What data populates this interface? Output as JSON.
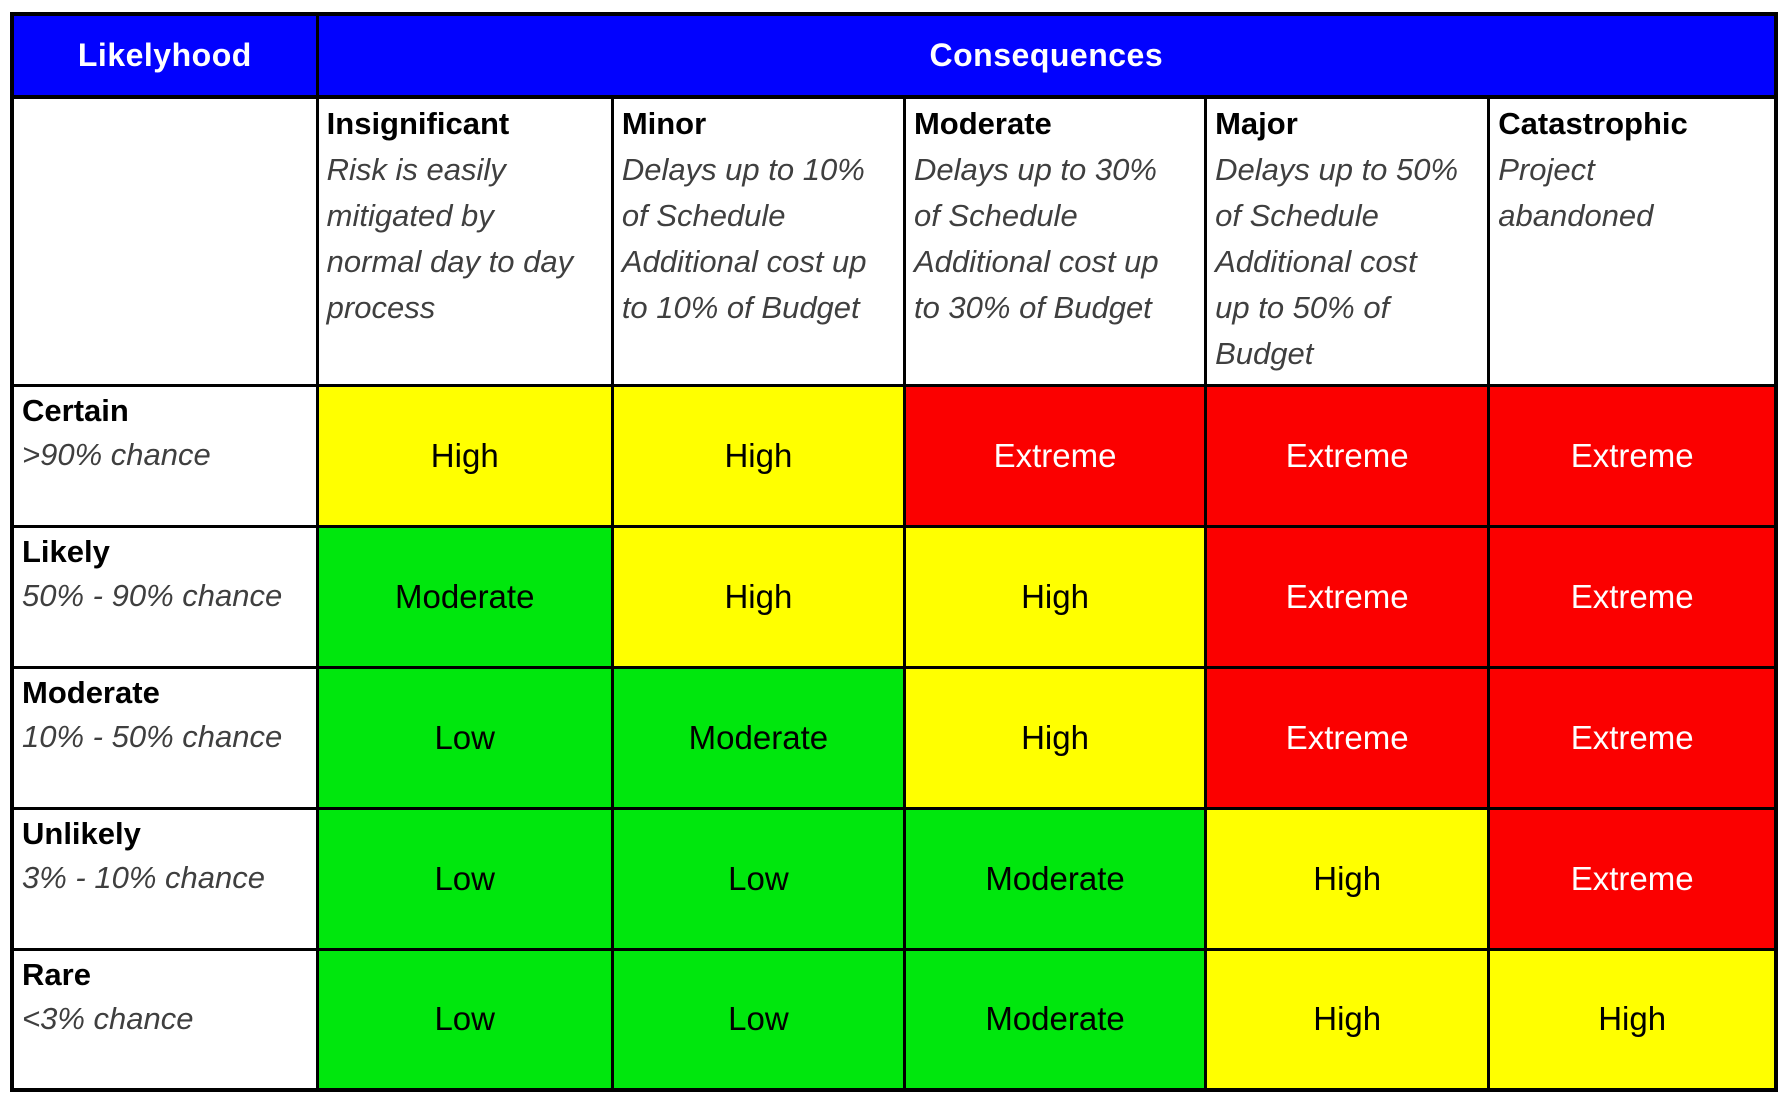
{
  "page": {
    "background": "#FFFFFF"
  },
  "table": {
    "likelihood_header": "Likelyhood",
    "consequences_header": "Consequences",
    "columns": [
      {
        "name": "Insignificant",
        "description": "Risk is easily\nmitigated by\nnormal day to day\nprocess"
      },
      {
        "name": "Minor",
        "description": "Delays up to 10%\nof Schedule\nAdditional cost up\nto 10% of Budget"
      },
      {
        "name": "Moderate",
        "description": "Delays up to 30%\nof Schedule\nAdditional cost up\nto 30% of Budget"
      },
      {
        "name": "Major",
        "description": "Delays up to 50%\nof Schedule\nAdditional cost\nup to 50% of\nBudget"
      },
      {
        "name": "Catastrophic",
        "description": "Project\nabandoned"
      }
    ],
    "rows": [
      {
        "name": "Certain",
        "description": ">90% chance",
        "cells": [
          {
            "label": "High",
            "level": "high"
          },
          {
            "label": "High",
            "level": "high"
          },
          {
            "label": "Extreme",
            "level": "extreme"
          },
          {
            "label": "Extreme",
            "level": "extreme"
          },
          {
            "label": "Extreme",
            "level": "extreme"
          }
        ]
      },
      {
        "name": "Likely",
        "description": "50% - 90% chance",
        "cells": [
          {
            "label": "Moderate",
            "level": "moderate"
          },
          {
            "label": "High",
            "level": "high"
          },
          {
            "label": "High",
            "level": "high"
          },
          {
            "label": "Extreme",
            "level": "extreme"
          },
          {
            "label": "Extreme",
            "level": "extreme"
          }
        ]
      },
      {
        "name": "Moderate",
        "description": "10% - 50% chance",
        "cells": [
          {
            "label": "Low",
            "level": "low"
          },
          {
            "label": "Moderate",
            "level": "moderate"
          },
          {
            "label": "High",
            "level": "high"
          },
          {
            "label": "Extreme",
            "level": "extreme"
          },
          {
            "label": "Extreme",
            "level": "extreme"
          }
        ]
      },
      {
        "name": "Unlikely",
        "description": "3% - 10% chance",
        "cells": [
          {
            "label": "Low",
            "level": "low"
          },
          {
            "label": "Low",
            "level": "low"
          },
          {
            "label": "Moderate",
            "level": "moderate"
          },
          {
            "label": "High",
            "level": "high"
          },
          {
            "label": "Extreme",
            "level": "extreme"
          }
        ]
      },
      {
        "name": "Rare",
        "description": "<3% chance",
        "cells": [
          {
            "label": "Low",
            "level": "low"
          },
          {
            "label": "Low",
            "level": "low"
          },
          {
            "label": "Moderate",
            "level": "moderate"
          },
          {
            "label": "High",
            "level": "high"
          },
          {
            "label": "High",
            "level": "high"
          }
        ]
      }
    ],
    "colors": {
      "header_bg": "#0202FE",
      "header_text": "#FFFFFF",
      "green": "#00E70D",
      "yellow": "#FFFF00",
      "red": "#FB0000",
      "extreme_text": "#FFFFFF",
      "cell_text": "#000000",
      "description_text": "#3F3F3F",
      "border": "#000000"
    }
  }
}
